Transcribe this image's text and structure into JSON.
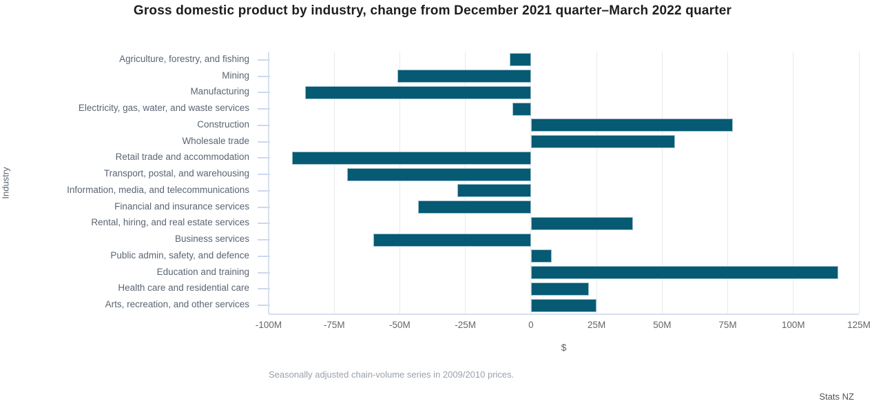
{
  "chart_data": {
    "type": "bar",
    "orientation": "horizontal",
    "title": "Gross domestic product by industry, change from December 2021 quarter–March 2022 quarter",
    "xlabel": "$",
    "ylabel": "Industry",
    "unit": "millions of dollars",
    "xlim": [
      -100,
      125
    ],
    "grid": true,
    "legend": "none",
    "x_tick_values": [
      -100,
      -75,
      -50,
      -25,
      0,
      25,
      50,
      75,
      100,
      125
    ],
    "x_tick_labels": [
      "-100M",
      "-75M",
      "-50M",
      "-25M",
      "0",
      "25M",
      "50M",
      "75M",
      "100M",
      "125M"
    ],
    "categories": [
      "Agriculture, forestry, and fishing",
      "Mining",
      "Manufacturing",
      "Electricity, gas, water, and waste services",
      "Construction",
      "Wholesale trade",
      "Retail trade and accommodation",
      "Transport, postal, and warehousing",
      "Information, media, and telecommunications",
      "Financial and insurance services",
      "Rental, hiring, and real estate services",
      "Business services",
      "Public admin, safety, and defence",
      "Education and training",
      "Health care and residential care",
      "Arts, recreation, and other services"
    ],
    "values": [
      -8,
      -51,
      -86,
      -7,
      77,
      55,
      -91,
      -70,
      -28,
      -43,
      39,
      -60,
      8,
      117,
      22,
      25
    ],
    "note": "Seasonally adjusted chain-volume series in 2009/2010 prices.",
    "source": "Stats NZ"
  },
  "colors": {
    "bar": "#065a73",
    "bar_border": "#9dbfcd",
    "gridline": "#e7e9ec",
    "axis_line": "#d7dff0",
    "tick_mark": "#ccd7ef",
    "category_label": "#5a6572",
    "tick_label": "#63656a",
    "title": "#1d1d1d",
    "note": "#9aa1a9",
    "source": "#4f5459"
  }
}
